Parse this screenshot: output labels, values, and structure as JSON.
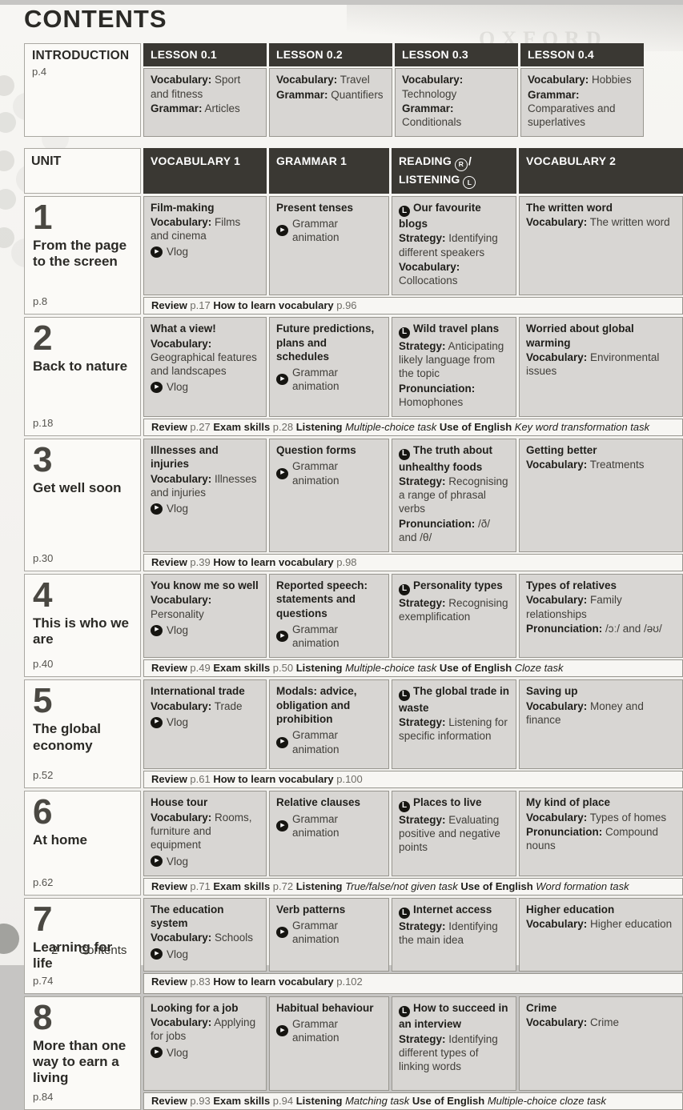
{
  "page": {
    "title": "CONTENTS",
    "watermark": "OXFORD"
  },
  "footer": {
    "page_number": "2",
    "label": "Contents"
  },
  "colors": {
    "header_bar": "#3a3833",
    "header_text": "#ffffff",
    "cell_bg": "#d8d6d3",
    "cell_border": "#98968f",
    "unit_cell_bg": "#fbfaf7",
    "review_bg": "#f7f6f3",
    "backdrop": "#c6c5c3",
    "title_text": "#2b2a26",
    "body_text": "#403e39",
    "unit_number": "#4a4842",
    "page_ref": "#6e6c66",
    "icon_bg": "#161511"
  },
  "intro": {
    "label": "INTRODUCTION",
    "page": "p.4",
    "lessons": [
      {
        "title": "LESSON 0.1",
        "lines": [
          {
            "kind": "pair",
            "label": "Vocabulary:",
            "text": "Sport and fitness"
          },
          {
            "kind": "pair",
            "label": "Grammar:",
            "text": "Articles"
          }
        ]
      },
      {
        "title": "LESSON 0.2",
        "lines": [
          {
            "kind": "pair",
            "label": "Vocabulary:",
            "text": "Travel"
          },
          {
            "kind": "pair",
            "label": "Grammar:",
            "text": "Quantifiers"
          }
        ]
      },
      {
        "title": "LESSON 0.3",
        "lines": [
          {
            "kind": "pair",
            "label": "Vocabulary:",
            "text": "Technology"
          },
          {
            "kind": "pair",
            "label": "Grammar:",
            "text": "Conditionals"
          }
        ]
      },
      {
        "title": "LESSON 0.4",
        "lines": [
          {
            "kind": "pair",
            "label": "Vocabulary:",
            "text": "Hobbies"
          },
          {
            "kind": "pair",
            "label": "Grammar:",
            "text": "Comparatives and superlatives"
          }
        ]
      }
    ]
  },
  "headers": {
    "unit": "UNIT",
    "vocabulary1": "VOCABULARY 1",
    "grammar1": "GRAMMAR 1",
    "reading": "READING",
    "reading_icon": "R",
    "separator": "/",
    "listening": "LISTENING",
    "listening_icon": "L",
    "vocabulary2": "VOCABULARY 2"
  },
  "units": [
    {
      "number": "1",
      "title": "From the page to the screen",
      "page": "p.8",
      "vocabulary1": [
        {
          "kind": "title",
          "text": "Film-making"
        },
        {
          "kind": "pair",
          "label": "Vocabulary:",
          "text": "Films and cinema"
        },
        {
          "kind": "media",
          "text": "Vlog"
        }
      ],
      "grammar1": [
        {
          "kind": "title",
          "text": "Present tenses"
        },
        {
          "kind": "media",
          "text": "Grammar animation"
        }
      ],
      "reading_listening": [
        {
          "kind": "listen_title",
          "text": "Our favourite blogs"
        },
        {
          "kind": "pair",
          "label": "Strategy:",
          "text": "Identifying different speakers"
        },
        {
          "kind": "pair",
          "label": "Vocabulary:",
          "text": "Collocations"
        }
      ],
      "vocabulary2": [
        {
          "kind": "title",
          "text": "The written word"
        },
        {
          "kind": "pair",
          "label": "Vocabulary:",
          "text": "The written word"
        }
      ],
      "review": [
        {
          "s": "b",
          "t": "Review"
        },
        {
          "s": "r",
          "t": " p.17  "
        },
        {
          "s": "b",
          "t": "How to learn vocabulary"
        },
        {
          "s": "r",
          "t": " p.96"
        }
      ]
    },
    {
      "number": "2",
      "title": "Back to nature",
      "page": "p.18",
      "vocabulary1": [
        {
          "kind": "title",
          "text": "What a view!"
        },
        {
          "kind": "pair",
          "label": "Vocabulary:",
          "text": "Geographical features and landscapes"
        },
        {
          "kind": "media",
          "text": "Vlog"
        }
      ],
      "grammar1": [
        {
          "kind": "title",
          "text": "Future predictions, plans and schedules"
        },
        {
          "kind": "media",
          "text": "Grammar animation"
        }
      ],
      "reading_listening": [
        {
          "kind": "listen_title",
          "text": "Wild travel plans"
        },
        {
          "kind": "pair",
          "label": "Strategy:",
          "text": "Anticipating likely language from the topic"
        },
        {
          "kind": "pair",
          "label": "Pronunciation:",
          "text": "Homophones"
        }
      ],
      "vocabulary2": [
        {
          "kind": "title",
          "text": "Worried about global warming"
        },
        {
          "kind": "pair",
          "label": "Vocabulary:",
          "text": "Environmental issues"
        }
      ],
      "review": [
        {
          "s": "b",
          "t": "Review"
        },
        {
          "s": "r",
          "t": " p.27  "
        },
        {
          "s": "b",
          "t": "Exam skills"
        },
        {
          "s": "r",
          "t": " p.28 "
        },
        {
          "s": "b",
          "t": "Listening"
        },
        {
          "s": "i",
          "t": " Multiple-choice task "
        },
        {
          "s": "b",
          "t": "Use of English"
        },
        {
          "s": "i",
          "t": " Key word transformation task"
        }
      ]
    },
    {
      "number": "3",
      "title": "Get well soon",
      "page": "p.30",
      "vocabulary1": [
        {
          "kind": "title",
          "text": "Illnesses and injuries"
        },
        {
          "kind": "pair",
          "label": "Vocabulary:",
          "text": "Illnesses and injuries"
        },
        {
          "kind": "media",
          "text": "Vlog"
        }
      ],
      "grammar1": [
        {
          "kind": "title",
          "text": "Question forms"
        },
        {
          "kind": "media",
          "text": "Grammar animation"
        }
      ],
      "reading_listening": [
        {
          "kind": "listen_title",
          "text": "The truth about unhealthy foods"
        },
        {
          "kind": "pair",
          "label": "Strategy:",
          "text": "Recognising a range of phrasal verbs"
        },
        {
          "kind": "pair",
          "label": "Pronunciation:",
          "text": "/ð/ and /θ/"
        }
      ],
      "vocabulary2": [
        {
          "kind": "title",
          "text": "Getting better"
        },
        {
          "kind": "pair",
          "label": "Vocabulary:",
          "text": "Treatments"
        }
      ],
      "review": [
        {
          "s": "b",
          "t": "Review"
        },
        {
          "s": "r",
          "t": " p.39  "
        },
        {
          "s": "b",
          "t": "How to learn vocabulary"
        },
        {
          "s": "r",
          "t": " p.98"
        }
      ]
    },
    {
      "number": "4",
      "title": "This is who we are",
      "page": "p.40",
      "vocabulary1": [
        {
          "kind": "title",
          "text": "You know me so well"
        },
        {
          "kind": "pair",
          "label": "Vocabulary:",
          "text": "Personality"
        },
        {
          "kind": "media",
          "text": "Vlog"
        }
      ],
      "grammar1": [
        {
          "kind": "title",
          "text": "Reported speech: statements and questions"
        },
        {
          "kind": "media",
          "text": "Grammar animation"
        }
      ],
      "reading_listening": [
        {
          "kind": "listen_title",
          "text": "Personality types"
        },
        {
          "kind": "pair",
          "label": "Strategy:",
          "text": "Recognising exemplification"
        }
      ],
      "vocabulary2": [
        {
          "kind": "title",
          "text": "Types of relatives"
        },
        {
          "kind": "pair",
          "label": "Vocabulary:",
          "text": "Family relationships"
        },
        {
          "kind": "pair",
          "label": "Pronunciation:",
          "text": "/ɔː/ and /əʊ/"
        }
      ],
      "review": [
        {
          "s": "b",
          "t": "Review"
        },
        {
          "s": "r",
          "t": " p.49  "
        },
        {
          "s": "b",
          "t": "Exam skills"
        },
        {
          "s": "r",
          "t": " p.50 "
        },
        {
          "s": "b",
          "t": "Listening"
        },
        {
          "s": "i",
          "t": " Multiple-choice task "
        },
        {
          "s": "b",
          "t": "Use of English"
        },
        {
          "s": "i",
          "t": " Cloze task"
        }
      ]
    },
    {
      "number": "5",
      "title": "The global economy",
      "page": "p.52",
      "vocabulary1": [
        {
          "kind": "title",
          "text": "International trade"
        },
        {
          "kind": "pair",
          "label": "Vocabulary:",
          "text": "Trade"
        },
        {
          "kind": "media",
          "text": "Vlog"
        }
      ],
      "grammar1": [
        {
          "kind": "title",
          "text": "Modals: advice, obligation and prohibition"
        },
        {
          "kind": "media",
          "text": "Grammar animation"
        }
      ],
      "reading_listening": [
        {
          "kind": "listen_title",
          "text": "The global trade in waste"
        },
        {
          "kind": "pair",
          "label": "Strategy:",
          "text": "Listening for specific information"
        }
      ],
      "vocabulary2": [
        {
          "kind": "title",
          "text": "Saving up"
        },
        {
          "kind": "pair",
          "label": "Vocabulary:",
          "text": "Money and finance"
        }
      ],
      "review": [
        {
          "s": "b",
          "t": "Review"
        },
        {
          "s": "r",
          "t": " p.61  "
        },
        {
          "s": "b",
          "t": "How to learn vocabulary"
        },
        {
          "s": "r",
          "t": " p.100"
        }
      ]
    },
    {
      "number": "6",
      "title": "At home",
      "page": "p.62",
      "vocabulary1": [
        {
          "kind": "title",
          "text": "House tour"
        },
        {
          "kind": "pair",
          "label": "Vocabulary:",
          "text": "Rooms, furniture and equipment"
        },
        {
          "kind": "media",
          "text": "Vlog"
        }
      ],
      "grammar1": [
        {
          "kind": "title",
          "text": "Relative clauses"
        },
        {
          "kind": "media",
          "text": "Grammar animation"
        }
      ],
      "reading_listening": [
        {
          "kind": "listen_title",
          "text": "Places to live"
        },
        {
          "kind": "pair",
          "label": "Strategy:",
          "text": "Evaluating positive and negative points"
        }
      ],
      "vocabulary2": [
        {
          "kind": "title",
          "text": "My kind of place"
        },
        {
          "kind": "pair",
          "label": "Vocabulary:",
          "text": "Types of homes"
        },
        {
          "kind": "pair",
          "label": "Pronunciation:",
          "text": "Compound nouns"
        }
      ],
      "review": [
        {
          "s": "b",
          "t": "Review"
        },
        {
          "s": "r",
          "t": " p.71  "
        },
        {
          "s": "b",
          "t": "Exam skills"
        },
        {
          "s": "r",
          "t": " p.72 "
        },
        {
          "s": "b",
          "t": "Listening"
        },
        {
          "s": "i",
          "t": " True/false/not given task "
        },
        {
          "s": "b",
          "t": "Use of English"
        },
        {
          "s": "i",
          "t": " Word formation task"
        }
      ]
    },
    {
      "number": "7",
      "title": "Learning for life",
      "page": "p.74",
      "vocabulary1": [
        {
          "kind": "title",
          "text": "The education system"
        },
        {
          "kind": "pair",
          "label": "Vocabulary:",
          "text": "Schools"
        },
        {
          "kind": "media",
          "text": "Vlog"
        }
      ],
      "grammar1": [
        {
          "kind": "title",
          "text": "Verb patterns"
        },
        {
          "kind": "media",
          "text": "Grammar animation"
        }
      ],
      "reading_listening": [
        {
          "kind": "listen_title",
          "text": "Internet access"
        },
        {
          "kind": "pair",
          "label": "Strategy:",
          "text": "Identifying the main idea"
        }
      ],
      "vocabulary2": [
        {
          "kind": "title",
          "text": "Higher education"
        },
        {
          "kind": "pair",
          "label": "Vocabulary:",
          "text": "Higher education"
        }
      ],
      "review": [
        {
          "s": "b",
          "t": "Review"
        },
        {
          "s": "r",
          "t": " p.83  "
        },
        {
          "s": "b",
          "t": "How to learn vocabulary"
        },
        {
          "s": "r",
          "t": " p.102"
        }
      ]
    },
    {
      "number": "8",
      "title": "More than one way to earn a living",
      "page": "p.84",
      "vocabulary1": [
        {
          "kind": "title",
          "text": "Looking for a job"
        },
        {
          "kind": "pair",
          "label": "Vocabulary:",
          "text": "Applying for jobs"
        },
        {
          "kind": "media",
          "text": "Vlog"
        }
      ],
      "grammar1": [
        {
          "kind": "title",
          "text": "Habitual behaviour"
        },
        {
          "kind": "media",
          "text": "Grammar animation"
        }
      ],
      "reading_listening": [
        {
          "kind": "listen_title",
          "text": "How to succeed in an interview"
        },
        {
          "kind": "pair",
          "label": "Strategy:",
          "text": "Identifying different types of linking words"
        }
      ],
      "vocabulary2": [
        {
          "kind": "title",
          "text": "Crime"
        },
        {
          "kind": "pair",
          "label": "Vocabulary:",
          "text": "Crime"
        }
      ],
      "review": [
        {
          "s": "b",
          "t": "Review"
        },
        {
          "s": "r",
          "t": " p.93  "
        },
        {
          "s": "b",
          "t": "Exam skills"
        },
        {
          "s": "r",
          "t": " p.94 "
        },
        {
          "s": "b",
          "t": "Listening"
        },
        {
          "s": "i",
          "t": " Matching task "
        },
        {
          "s": "b",
          "t": "Use of English"
        },
        {
          "s": "i",
          "t": " Multiple-choice cloze task"
        }
      ]
    }
  ]
}
